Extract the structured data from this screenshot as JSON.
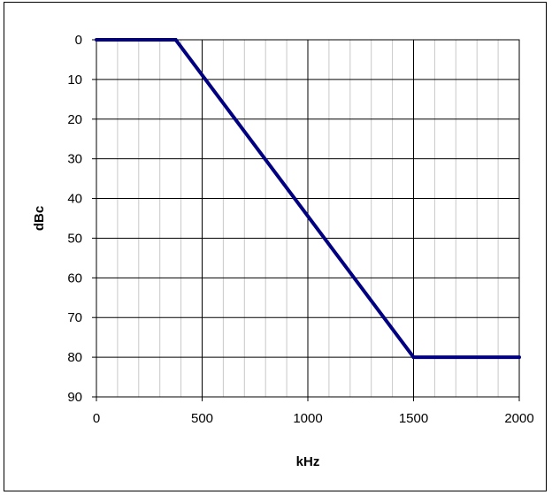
{
  "chart_data": {
    "type": "line",
    "title": "",
    "xlabel": "kHz",
    "ylabel": "dBc",
    "xlim": [
      0,
      2000
    ],
    "ylim": [
      0,
      90
    ],
    "y_inverted": true,
    "grid": true,
    "x_ticks": [
      0,
      500,
      1000,
      1500,
      2000
    ],
    "y_ticks": [
      0,
      10,
      20,
      30,
      40,
      50,
      60,
      70,
      80,
      90
    ],
    "x_tick_labels": [
      "0",
      "500",
      "1000",
      "1500",
      "2000"
    ],
    "y_tick_labels": [
      "0",
      "10",
      "20",
      "30",
      "40",
      "50",
      "60",
      "70",
      "80",
      "90"
    ],
    "series": [
      {
        "color": "#000080",
        "x": [
          0,
          375,
          1500,
          2000
        ],
        "y": [
          0,
          0,
          80,
          80
        ]
      }
    ]
  }
}
